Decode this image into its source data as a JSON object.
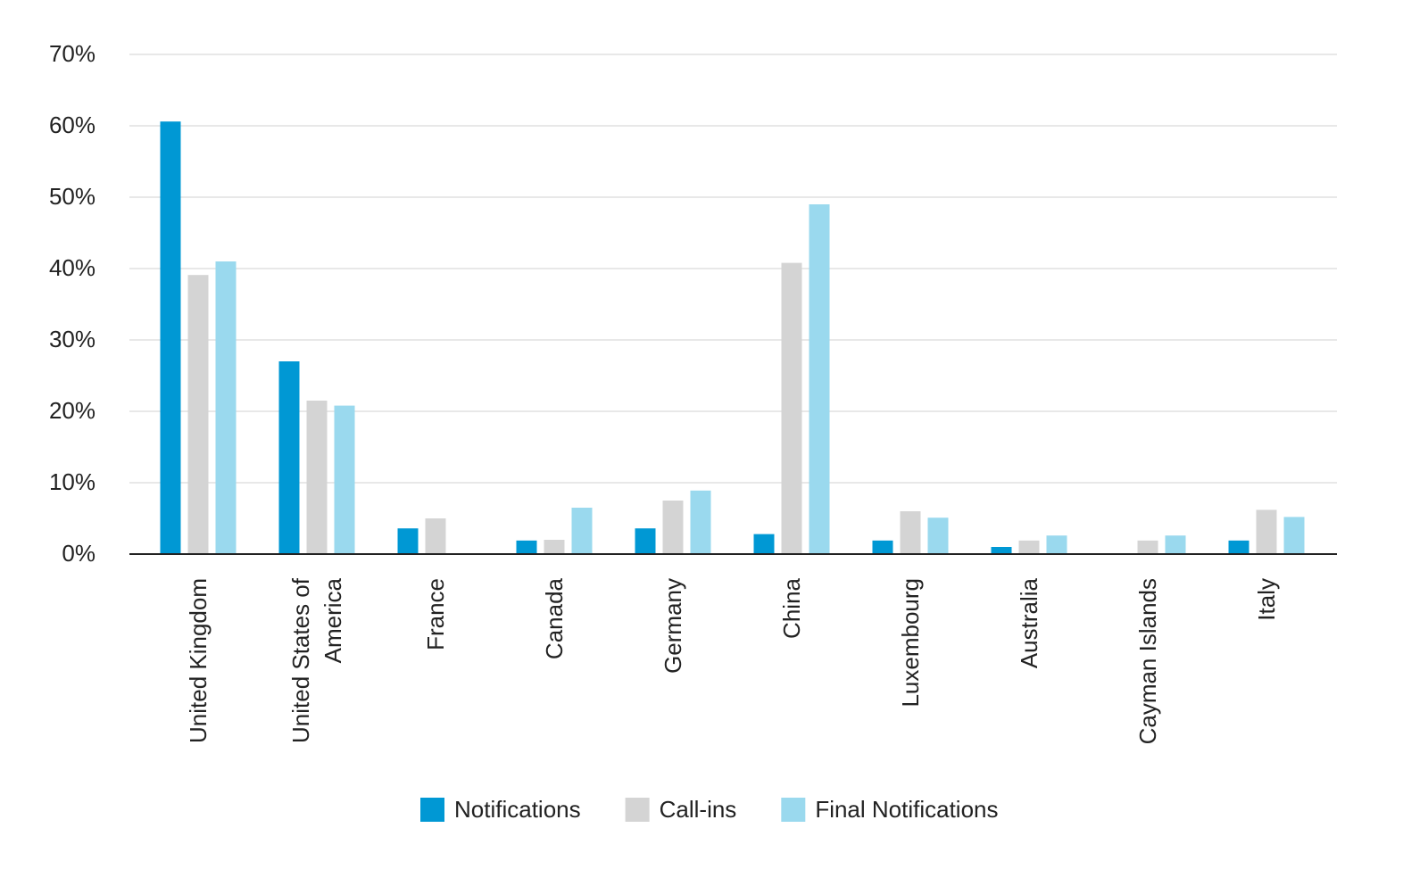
{
  "chart_data": {
    "type": "bar",
    "categories": [
      "United Kingdom",
      "United States of America",
      "France",
      "Canada",
      "Germany",
      "China",
      "Luxembourg",
      "Australia",
      "Cayman Islands",
      "Italy"
    ],
    "series": [
      {
        "name": "Notifications",
        "color": "#0098d4",
        "values": [
          60.6,
          27.0,
          3.6,
          1.9,
          3.6,
          2.8,
          1.9,
          1.0,
          0,
          1.9
        ]
      },
      {
        "name": "Call-ins",
        "color": "#d4d4d4",
        "values": [
          39.1,
          21.5,
          5.0,
          2.0,
          7.5,
          40.8,
          6.0,
          1.9,
          1.9,
          6.2
        ]
      },
      {
        "name": "Final Notifications",
        "color": "#9ad9ee",
        "values": [
          41.0,
          20.8,
          0,
          6.5,
          8.9,
          49.0,
          5.1,
          2.6,
          2.6,
          5.2
        ]
      }
    ],
    "ylim": [
      0,
      70
    ],
    "yticks": [
      {
        "value": 0,
        "label": "0%"
      },
      {
        "value": 10,
        "label": "10%"
      },
      {
        "value": 20,
        "label": "20%"
      },
      {
        "value": 30,
        "label": "30%"
      },
      {
        "value": 40,
        "label": "40%"
      },
      {
        "value": 50,
        "label": "50%"
      },
      {
        "value": 60,
        "label": "60%"
      },
      {
        "value": 70,
        "label": "70%"
      }
    ],
    "grid": true
  }
}
